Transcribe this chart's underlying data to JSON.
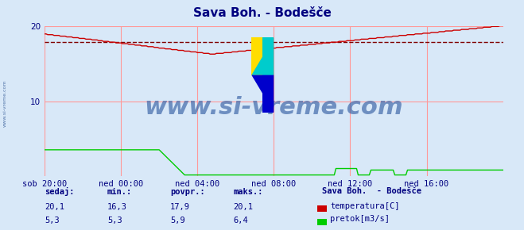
{
  "title": "Sava Boh. - Bodešče",
  "title_color": "#000080",
  "bg_color": "#d8e8f8",
  "plot_bg_color": "#d8e8f8",
  "grid_color": "#ff9999",
  "tick_color": "#000080",
  "xtick_labels": [
    "sob 20:00",
    "ned 00:00",
    "ned 04:00",
    "ned 08:00",
    "ned 12:00",
    "ned 16:00"
  ],
  "xtick_positions": [
    0,
    48,
    96,
    144,
    192,
    240
  ],
  "ylim": [
    0,
    20
  ],
  "xlim": [
    0,
    288
  ],
  "avg_line_value": 17.9,
  "avg_line_color": "#800000",
  "temp_color": "#cc0000",
  "flow_color": "#00cc00",
  "watermark_text": "www.si-vreme.com",
  "watermark_color": "#4169aa",
  "watermark_fontsize": 22,
  "left_label": "www.si-vreme.com",
  "legend_title": "Sava Boh.  - Bodešče",
  "legend_items": [
    "temperatura[C]",
    "pretok[m3/s]"
  ],
  "legend_colors": [
    "#cc0000",
    "#00cc00"
  ],
  "stats_labels": [
    "sedaj:",
    "min.:",
    "povpr.:",
    "maks.:"
  ],
  "stats_temp": [
    "20,1",
    "16,3",
    "17,9",
    "20,1"
  ],
  "stats_flow": [
    "5,3",
    "5,3",
    "5,9",
    "6,4"
  ],
  "n_points": 289
}
